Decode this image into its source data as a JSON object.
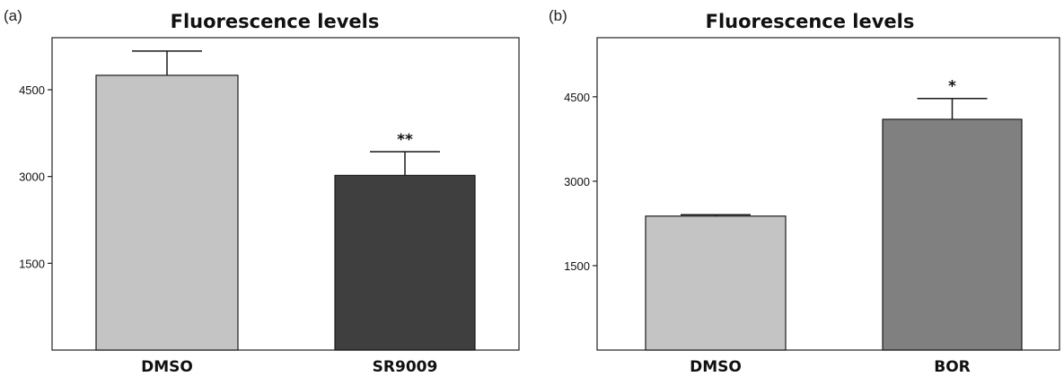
{
  "chart_data": [
    {
      "type": "bar",
      "panel_label": "(a)",
      "title": "Fluorescence levels",
      "xlabel": "",
      "ylabel": "",
      "categories": [
        "DMSO",
        "SR9009"
      ],
      "values": [
        4750,
        3020
      ],
      "errors": [
        420,
        410
      ],
      "colors": [
        "#c4c4c4",
        "#3f3f3f"
      ],
      "significance": [
        "",
        "**"
      ],
      "ylim": [
        0,
        5400
      ],
      "yticks": [
        1500,
        3000,
        4500
      ],
      "ytick_labels": [
        "1500",
        "3000",
        "4500"
      ],
      "grid": false
    },
    {
      "type": "bar",
      "panel_label": "(b)",
      "title": "Fluorescence levels",
      "xlabel": "",
      "ylabel": "",
      "categories": [
        "DMSO",
        "BOR"
      ],
      "values": [
        2380,
        4100
      ],
      "errors": [
        25,
        370
      ],
      "colors": [
        "#c4c4c4",
        "#808080"
      ],
      "significance": [
        "",
        "*"
      ],
      "ylim": [
        0,
        5550
      ],
      "yticks": [
        1500,
        3000,
        4500
      ],
      "ytick_labels": [
        "1500",
        "3000",
        "4500"
      ],
      "grid": false
    }
  ]
}
